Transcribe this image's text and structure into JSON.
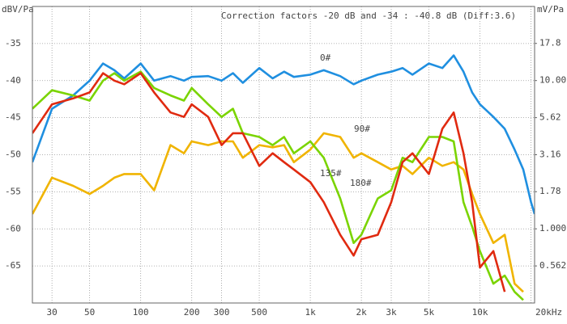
{
  "chart_data": {
    "type": "line",
    "title": "Correction factors -20 dB and -34 : -40.8 dB (Diff:3.6)",
    "ylabel": "dBV/Pa",
    "y2label": "mV/Pa",
    "xlog": true,
    "y2log": true,
    "grid": true,
    "xlim": [
      23,
      21000
    ],
    "ylim": [
      -70,
      -30
    ],
    "y2lim": [
      0.316,
      31.6
    ],
    "xticks": [
      30,
      50,
      100,
      200,
      300,
      500,
      {
        "value": 1000,
        "label": "1k"
      },
      {
        "value": 2000,
        "label": "2k"
      },
      {
        "value": 3000,
        "label": "3k"
      },
      {
        "value": 5000,
        "label": "5k"
      },
      {
        "value": 10000,
        "label": "10k"
      },
      {
        "value": 20000,
        "label": "20kHz"
      }
    ],
    "yticks": [
      -35,
      -40,
      -45,
      -50,
      -55,
      -60,
      -65
    ],
    "y2ticks": [
      17.8,
      {
        "value": 10,
        "label": "10.00"
      },
      5.62,
      3.16,
      1.78,
      {
        "value": 1,
        "label": "1.000"
      },
      0.562
    ],
    "x": [
      23,
      30,
      40,
      50,
      60,
      70,
      80,
      100,
      120,
      150,
      180,
      200,
      250,
      300,
      350,
      400,
      500,
      600,
      700,
      800,
      1000,
      1200,
      1500,
      1800,
      2000,
      2500,
      3000,
      3500,
      4000,
      5000,
      6000,
      7000,
      8000,
      9000,
      10000,
      12000,
      14000,
      16000,
      18000,
      20000,
      21000
    ],
    "series": [
      {
        "name": "0#",
        "color": "#1f8fe0",
        "values": [
          -51,
          -43.8,
          -42,
          -40,
          -37.7,
          -38.6,
          -39.7,
          -37.7,
          -40,
          -39.4,
          -40,
          -39.5,
          -39.4,
          -40,
          -39,
          -40.3,
          -38.3,
          -39.7,
          -38.8,
          -39.5,
          -39.2,
          -38.6,
          -39.4,
          -40.5,
          -40,
          -39.2,
          -38.8,
          -38.3,
          -39.2,
          -37.7,
          -38.3,
          -36.6,
          -38.8,
          -41.6,
          -43.2,
          -44.9,
          -46.5,
          -49.3,
          -52,
          -56.4,
          -58
        ]
      },
      {
        "name": "90#",
        "color": "#f0b400",
        "values": [
          -58,
          -53.1,
          -54.2,
          -55.3,
          -54.2,
          -53.1,
          -52.6,
          -52.6,
          -54.8,
          -48.7,
          -49.8,
          -48.2,
          -48.7,
          -48.2,
          -48.2,
          -50.4,
          -48.7,
          -49,
          -48.7,
          -51,
          -49.3,
          -47.1,
          -47.6,
          -50.4,
          -49.8,
          -51,
          -52,
          -51.5,
          -52.6,
          -50.4,
          -51.5,
          -51,
          -52,
          -55.3,
          -58,
          -61.9,
          -60.8,
          -67.4,
          -68.5,
          null,
          null
        ]
      },
      {
        "name": "135#",
        "color": "#7ad400",
        "values": [
          -43.8,
          -41.3,
          -42,
          -42.7,
          -40,
          -39,
          -40,
          -38.8,
          -41,
          -42,
          -42.7,
          -41,
          -43.2,
          -44.9,
          -43.8,
          -47.1,
          -47.6,
          -48.7,
          -47.6,
          -49.8,
          -48.2,
          -50.4,
          -55.9,
          -61.9,
          -60.8,
          -55.9,
          -54.8,
          -50.4,
          -51,
          -47.6,
          -47.6,
          -48.2,
          -56.4,
          -59.7,
          -63,
          -67.4,
          -66.3,
          -68.5,
          -69.6,
          null,
          null
        ]
      },
      {
        "name": "180#",
        "color": "#e02a10",
        "values": [
          -47.1,
          -43.2,
          -42.4,
          -41.6,
          -39,
          -40,
          -40.5,
          -39,
          -41.6,
          -44.3,
          -44.9,
          -43.2,
          -44.9,
          -48.7,
          -47.1,
          -47.1,
          -51.5,
          -49.8,
          -51,
          -52,
          -53.7,
          -56.4,
          -60.8,
          -63.6,
          -61.4,
          -60.8,
          -56.4,
          -51,
          -49.8,
          -52.6,
          -46.5,
          -44.3,
          -49.8,
          -56.4,
          -65.2,
          -63,
          -68.5,
          null,
          null,
          null,
          null
        ]
      }
    ]
  }
}
